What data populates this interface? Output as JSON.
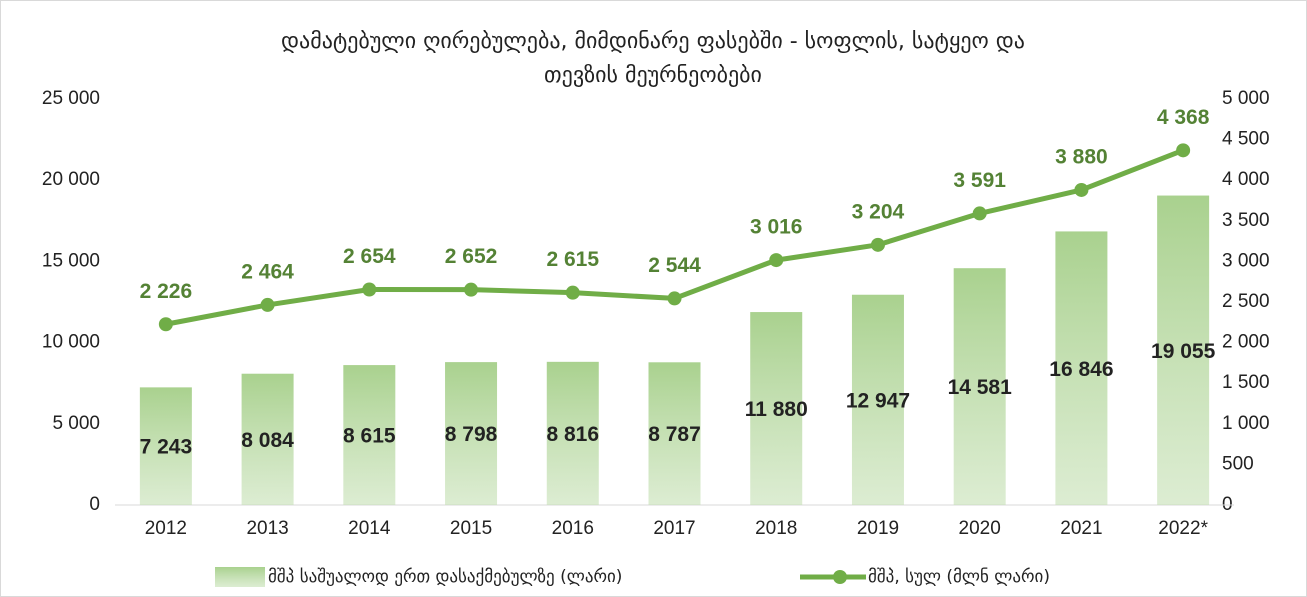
{
  "chart_data": {
    "type": "bar",
    "title": [
      "დამატებული ღირებულება, მიმდინარე ფასებში - სოფლის, სატყეო და",
      "თევზის მეურნეობები"
    ],
    "categories": [
      "2012",
      "2013",
      "2014",
      "2015",
      "2016",
      "2017",
      "2018",
      "2019",
      "2020",
      "2021",
      "2022*"
    ],
    "series": [
      {
        "name": "მშპ საშუალოდ ერთ დასაქმებულზე (ლარი)",
        "type": "bar",
        "color": "#a9d18e",
        "values": [
          7243,
          8084,
          8615,
          8798,
          8816,
          8787,
          11880,
          12947,
          14581,
          16846,
          19055
        ],
        "value_labels": [
          "7 243",
          "8 084",
          "8 615",
          "8 798",
          "8 816",
          "8 787",
          "11 880",
          "12 947",
          "14 581",
          "16 846",
          "19 055"
        ]
      },
      {
        "name": "მშპ, სულ (მლნ ლარი)",
        "type": "line",
        "axis": "y2",
        "color": "#70ad47",
        "label_color": "#548235",
        "values": [
          2226,
          2464,
          2654,
          2652,
          2615,
          2544,
          3016,
          3204,
          3591,
          3880,
          4368
        ],
        "value_labels": [
          "2 226",
          "2 464",
          "2 654",
          "2 652",
          "2 615",
          "2 544",
          "3 016",
          "3 204",
          "3 591",
          "3 880",
          "4 368"
        ]
      }
    ],
    "ylim": [
      0,
      25000
    ],
    "yticks": [
      0,
      {
        "value": 5000,
        "label": "5 000"
      },
      {
        "value": 10000,
        "label": "10 000"
      },
      {
        "value": 15000,
        "label": "15 000"
      },
      {
        "value": 20000,
        "label": "20 000"
      },
      {
        "value": 25000,
        "label": "25 000"
      }
    ],
    "y2lim": [
      0,
      5000
    ],
    "y2ticks": [
      0,
      500,
      {
        "value": 1000,
        "label": "1 000"
      },
      {
        "value": 1500,
        "label": "1 500"
      },
      {
        "value": 2000,
        "label": "2 000"
      },
      {
        "value": 2500,
        "label": "2 500"
      },
      {
        "value": 3000,
        "label": "3 000"
      },
      {
        "value": 3500,
        "label": "3 500"
      },
      {
        "value": 4000,
        "label": "4 000"
      },
      {
        "value": 4500,
        "label": "4 500"
      },
      {
        "value": 5000,
        "label": "5 000"
      }
    ],
    "legend": "bottom"
  }
}
